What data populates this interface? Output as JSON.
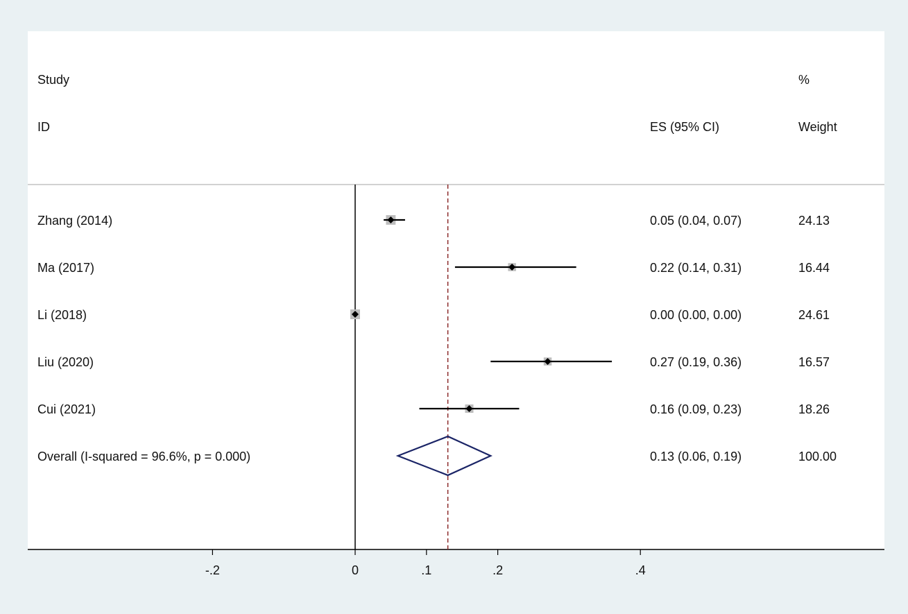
{
  "header": {
    "study_line1": "Study",
    "study_line2": "ID",
    "es_header": "ES (95% CI)",
    "weight_line1": "%",
    "weight_line2": "Weight"
  },
  "colors": {
    "background": "#eaf1f3",
    "plot_area": "#ffffff",
    "weight_box": "#bdbdbd",
    "overall_diamond": "#1a2466",
    "null_line": "#000000",
    "overall_line": "#8b2a2a"
  },
  "chart_data": {
    "type": "forest",
    "studies": [
      {
        "label": "Zhang (2014)",
        "es": 0.05,
        "ci": [
          0.04,
          0.07
        ],
        "es_text": "0.05 (0.04, 0.07)",
        "weight": 24.13,
        "weight_text": "24.13"
      },
      {
        "label": "Ma (2017)",
        "es": 0.22,
        "ci": [
          0.14,
          0.31
        ],
        "es_text": "0.22 (0.14, 0.31)",
        "weight": 16.44,
        "weight_text": "16.44"
      },
      {
        "label": "Li (2018)",
        "es": 0.0,
        "ci": [
          0.0,
          0.0
        ],
        "es_text": "0.00 (0.00, 0.00)",
        "weight": 24.61,
        "weight_text": "24.61"
      },
      {
        "label": "Liu (2020)",
        "es": 0.27,
        "ci": [
          0.19,
          0.36
        ],
        "es_text": "0.27 (0.19, 0.36)",
        "weight": 16.57,
        "weight_text": "16.57"
      },
      {
        "label": "Cui (2021)",
        "es": 0.16,
        "ci": [
          0.09,
          0.23
        ],
        "es_text": "0.16 (0.09, 0.23)",
        "weight": 18.26,
        "weight_text": "18.26"
      }
    ],
    "overall": {
      "label": "Overall  (I-squared = 96.6%, p = 0.000)",
      "es": 0.13,
      "ci": [
        0.06,
        0.19
      ],
      "es_text": "0.13 (0.06, 0.19)",
      "weight_text": "100.00"
    },
    "x_ticks": [
      -0.2,
      0,
      0.1,
      0.2,
      0.4
    ],
    "x_tick_labels": [
      "-.2",
      "0",
      ".1",
      ".2",
      ".4"
    ],
    "null_value": 0
  }
}
